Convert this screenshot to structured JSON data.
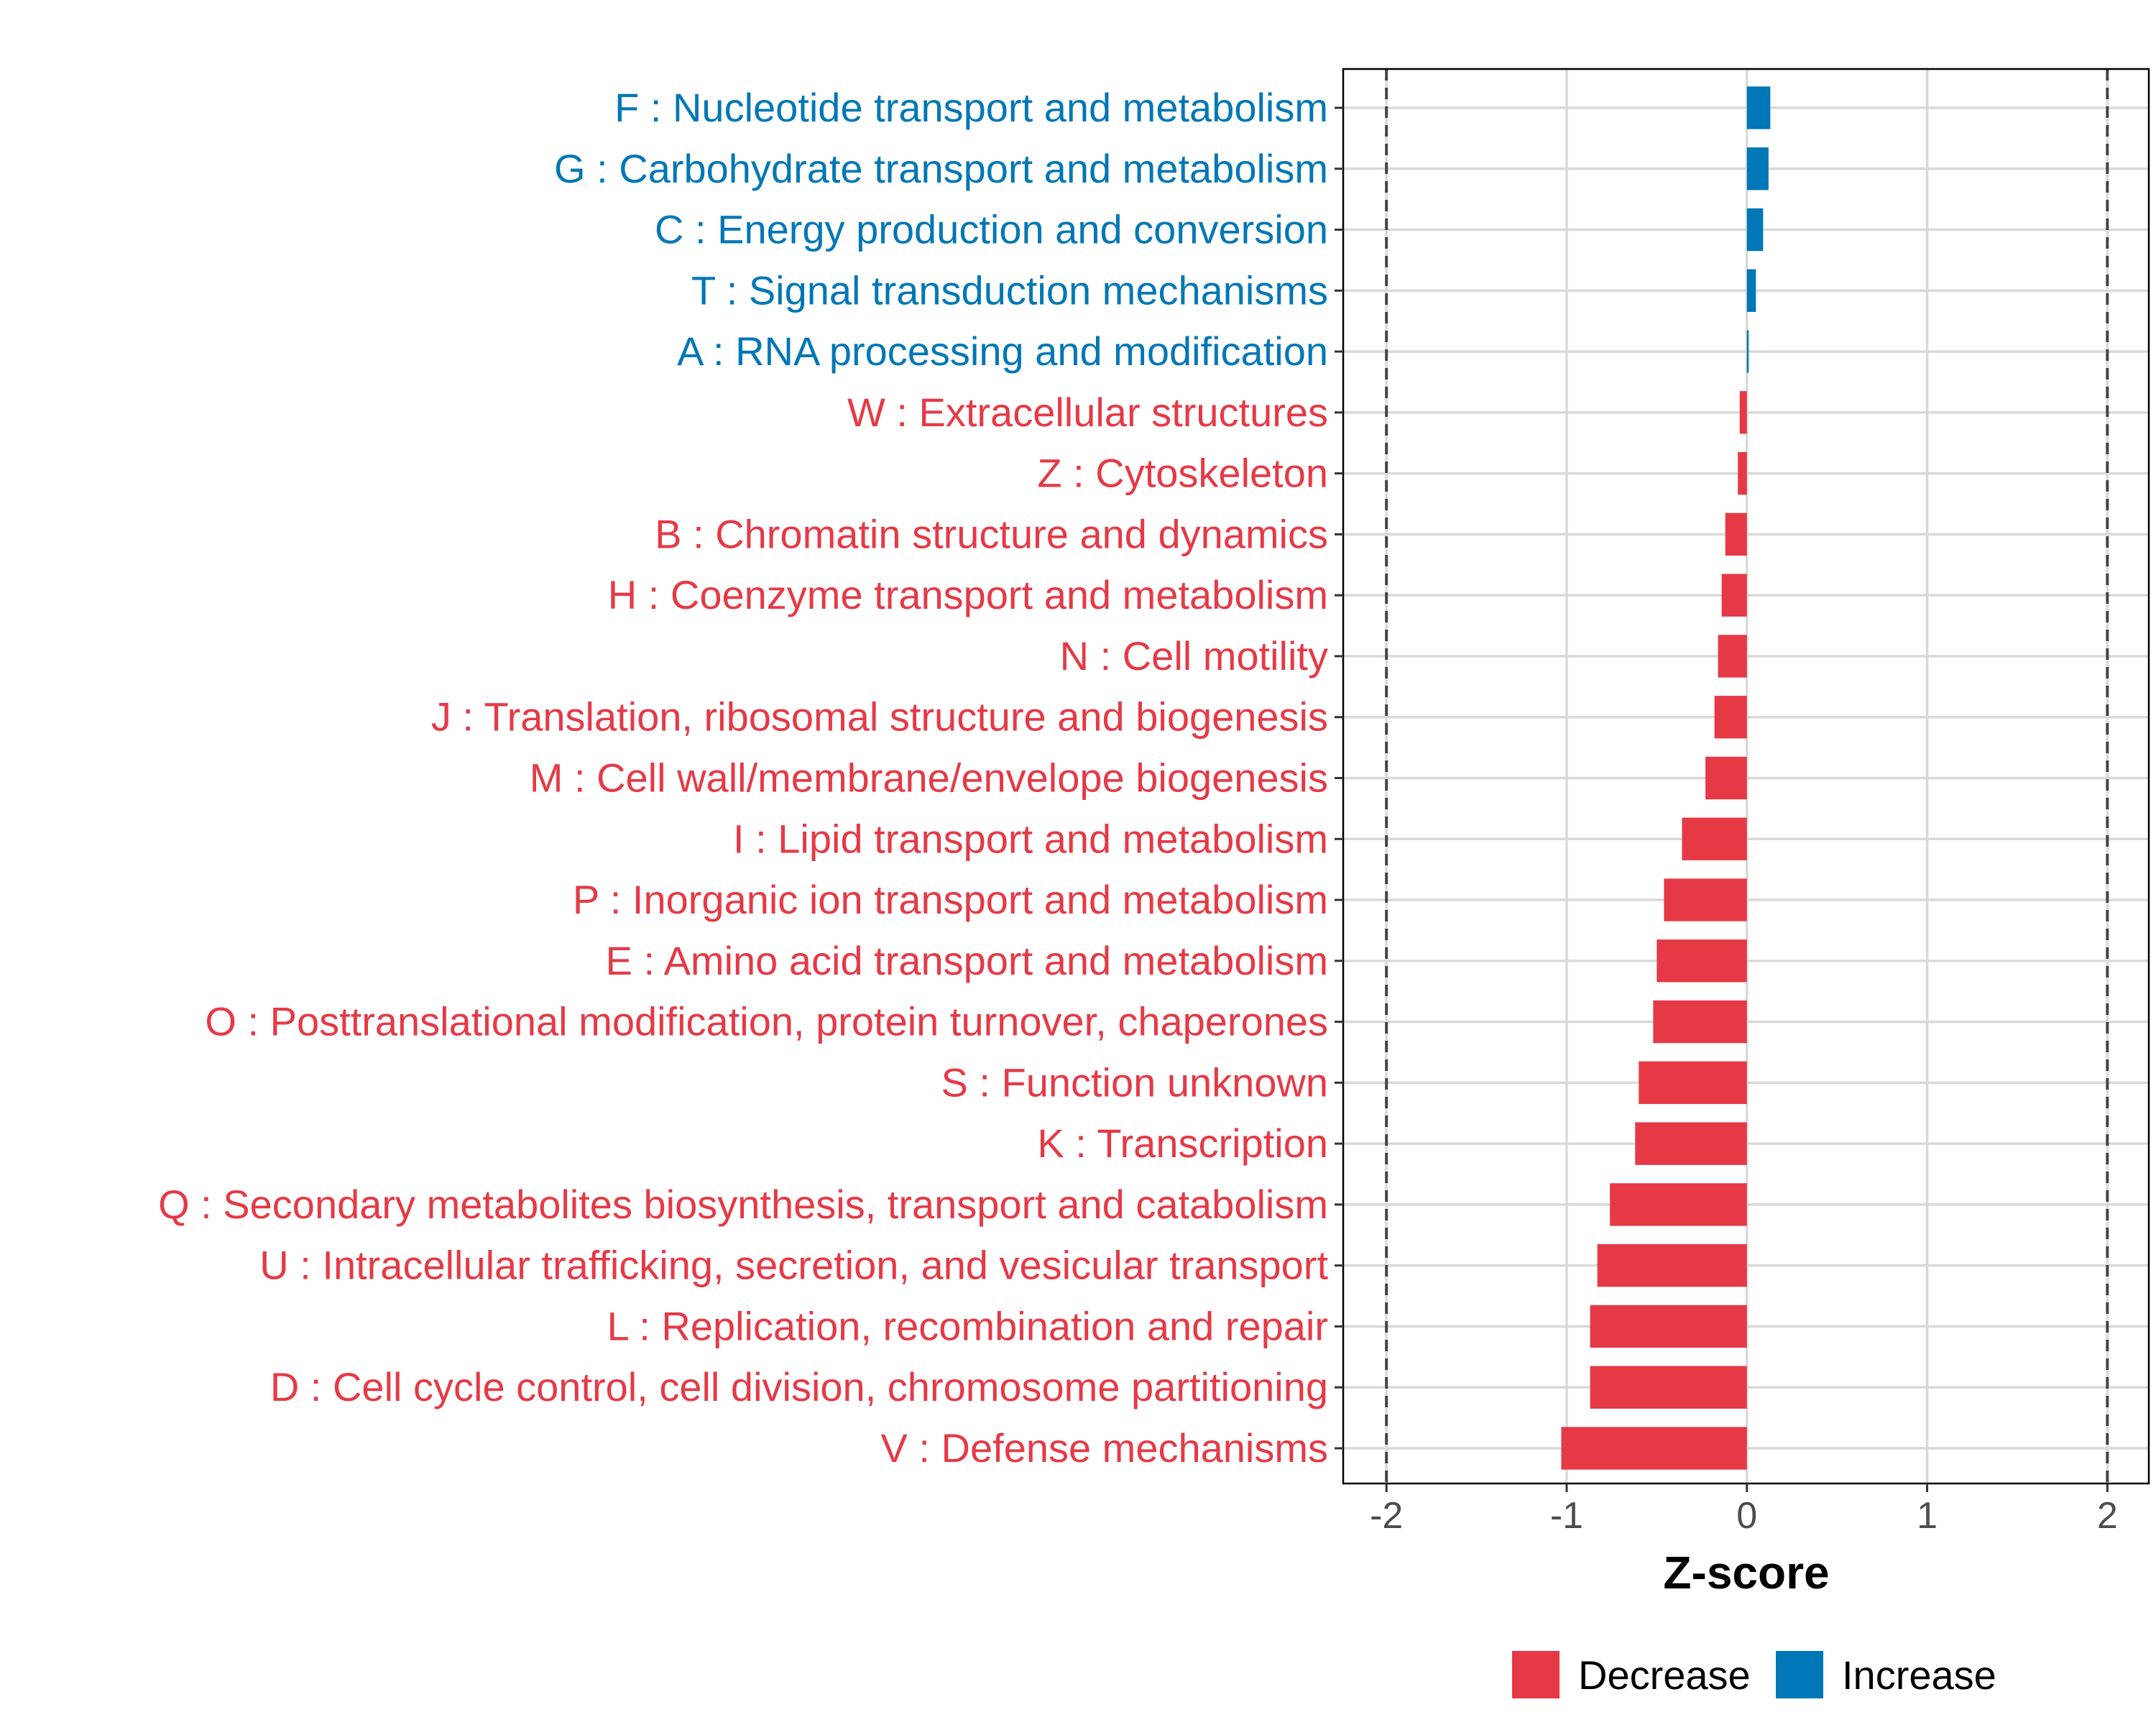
{
  "chart_data": {
    "type": "bar",
    "orientation": "horizontal",
    "title": "",
    "xlabel": "Z-score",
    "ylabel": "",
    "xlim": [
      -2.24,
      2.23
    ],
    "xticks": [
      -2,
      -1,
      0,
      1,
      2
    ],
    "xtick_labels": [
      "-2",
      "-1",
      "0",
      "1",
      "2"
    ],
    "reference_lines": [
      -2,
      2
    ],
    "grid": true,
    "categories": [
      "F : Nucleotide transport and metabolism",
      "G : Carbohydrate transport and metabolism",
      "C : Energy production and conversion",
      "T : Signal transduction mechanisms",
      "A : RNA processing and modification",
      "W : Extracellular structures",
      "Z : Cytoskeleton",
      "B : Chromatin structure and dynamics",
      "H : Coenzyme transport and metabolism",
      "N : Cell motility",
      "J : Translation, ribosomal structure and biogenesis",
      "M : Cell wall/membrane/envelope biogenesis",
      "I : Lipid transport and metabolism",
      "P : Inorganic ion transport and metabolism",
      "E : Amino acid transport and metabolism",
      "O : Posttranslational modification, protein turnover, chaperones",
      "S : Function unknown",
      "K : Transcription",
      "Q : Secondary metabolites biosynthesis, transport and catabolism",
      "U : Intracellular trafficking, secretion, and vesicular transport",
      "L : Replication, recombination and repair",
      "D : Cell cycle control, cell division, chromosome partitioning",
      "V : Defense mechanisms"
    ],
    "values": [
      0.13,
      0.12,
      0.09,
      0.05,
      0.01,
      -0.04,
      -0.05,
      -0.12,
      -0.14,
      -0.16,
      -0.18,
      -0.23,
      -0.36,
      -0.46,
      -0.5,
      -0.52,
      -0.6,
      -0.62,
      -0.76,
      -0.83,
      -0.87,
      -0.87,
      -1.03
    ],
    "groups": [
      "Increase",
      "Increase",
      "Increase",
      "Increase",
      "Increase",
      "Decrease",
      "Decrease",
      "Decrease",
      "Decrease",
      "Decrease",
      "Decrease",
      "Decrease",
      "Decrease",
      "Decrease",
      "Decrease",
      "Decrease",
      "Decrease",
      "Decrease",
      "Decrease",
      "Decrease",
      "Decrease",
      "Decrease",
      "Decrease"
    ],
    "legend": {
      "placement": "bottom",
      "entries": [
        {
          "label": "Decrease",
          "color": "#E63946"
        },
        {
          "label": "Increase",
          "color": "#0077B6"
        }
      ]
    }
  }
}
